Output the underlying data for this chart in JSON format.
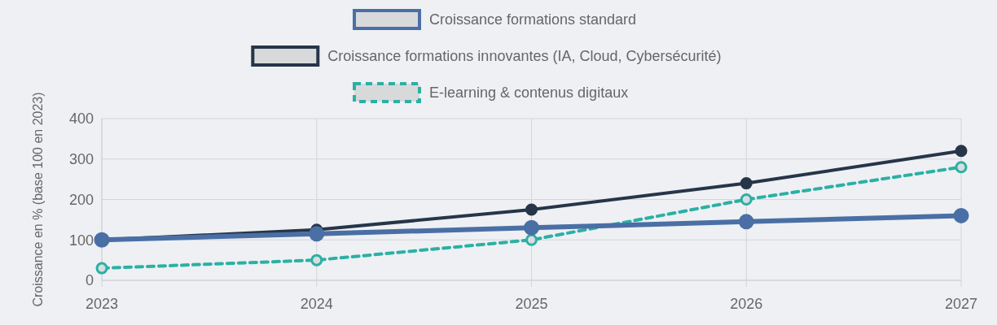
{
  "chart_data": {
    "type": "line",
    "ylabel": "Croissance en % (base 100 en 2023)",
    "categories": [
      "2023",
      "2024",
      "2025",
      "2026",
      "2027"
    ],
    "series": [
      {
        "name": "Croissance formations standard",
        "color": "#4a6fa5",
        "values": [
          100,
          115,
          130,
          145,
          160
        ]
      },
      {
        "name": "Croissance formations innovantes (IA, Cloud, Cybersécurité)",
        "color": "#263548",
        "values": [
          100,
          125,
          175,
          240,
          320
        ]
      },
      {
        "name": "E-learning & contenus digitaux",
        "color": "#2bb0a4",
        "values": [
          30,
          50,
          100,
          200,
          280
        ],
        "line_style": "dashed"
      }
    ],
    "ylim": [
      0,
      400
    ],
    "yticks": [
      0,
      100,
      200,
      300,
      400
    ],
    "grid": true,
    "legend": "top",
    "marker": "circle"
  }
}
